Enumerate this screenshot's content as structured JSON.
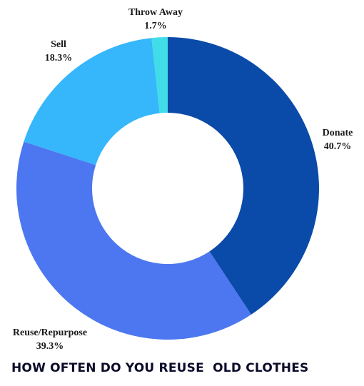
{
  "chart_data": {
    "type": "pie",
    "title": "HOW OFTEN DO YOU REUSE  OLD CLOTHES",
    "categories": [
      "Donate",
      "Reuse/Repurpose",
      "Sell",
      "Throw Away"
    ],
    "values": [
      40.7,
      39.3,
      18.3,
      1.7
    ],
    "value_labels": [
      "40.7%",
      "39.3%",
      "18.3%",
      "1.7%"
    ],
    "colors": [
      "#0a4aa8",
      "#4d77f0",
      "#36b6fb",
      "#40dde8"
    ],
    "style": "donut",
    "start": "top, clockwise"
  }
}
